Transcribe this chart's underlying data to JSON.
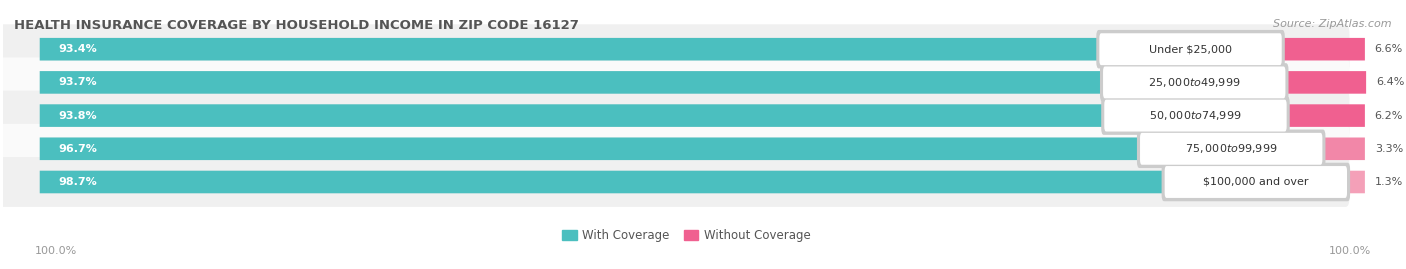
{
  "title": "HEALTH INSURANCE COVERAGE BY HOUSEHOLD INCOME IN ZIP CODE 16127",
  "source": "Source: ZipAtlas.com",
  "categories": [
    "Under $25,000",
    "$25,000 to $49,999",
    "$50,000 to $74,999",
    "$75,000 to $99,999",
    "$100,000 and over"
  ],
  "with_coverage": [
    93.4,
    93.7,
    93.8,
    96.7,
    98.7
  ],
  "without_coverage": [
    6.6,
    6.4,
    6.2,
    3.3,
    1.3
  ],
  "coverage_color": "#4bbfbf",
  "no_coverage_color": "#f06090",
  "no_coverage_color_light": "#f4a0b8",
  "bar_bg_color": "#e8e8e8",
  "row_bg_odd": "#f0f0f0",
  "row_bg_even": "#fafafa",
  "bar_height": 0.68,
  "label_fontsize": 8.0,
  "title_fontsize": 9.5,
  "footer_fontsize": 8.0,
  "legend_fontsize": 8.5,
  "coverage_label": "With Coverage",
  "no_coverage_label": "Without Coverage",
  "left_label": "100.0%",
  "right_label": "100.0%",
  "total_width": 100.0
}
